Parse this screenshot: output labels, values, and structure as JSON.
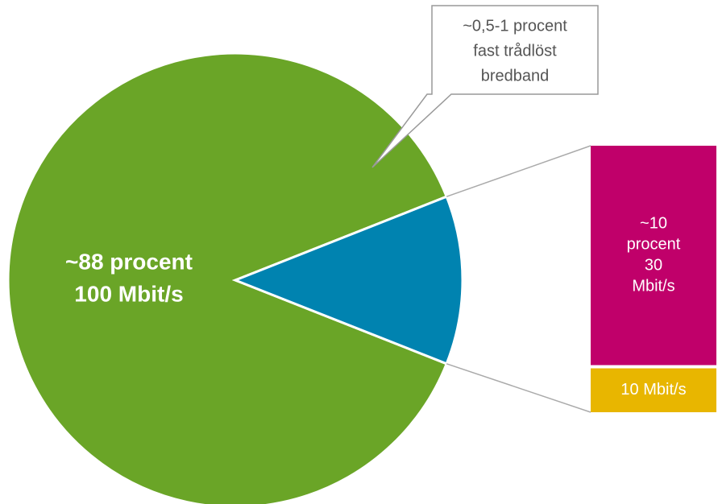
{
  "chart_data": {
    "type": "pie-of-bar",
    "pie": {
      "categories": [
        [
          "~88 procent",
          "100 Mbit/s"
        ],
        null
      ],
      "values": [
        88,
        12
      ],
      "colors": [
        "#6aa527",
        "#0083b0"
      ]
    },
    "bar": {
      "categories": [
        [
          "~10",
          "procent",
          "30",
          "Mbit/s"
        ],
        [
          "10 Mbit/s"
        ]
      ],
      "values": [
        10,
        2
      ],
      "colors": [
        "#c0006a",
        "#e8b600"
      ]
    },
    "annotation": [
      "~0,5-1 procent",
      "fast trådlöst",
      "bredband"
    ]
  }
}
